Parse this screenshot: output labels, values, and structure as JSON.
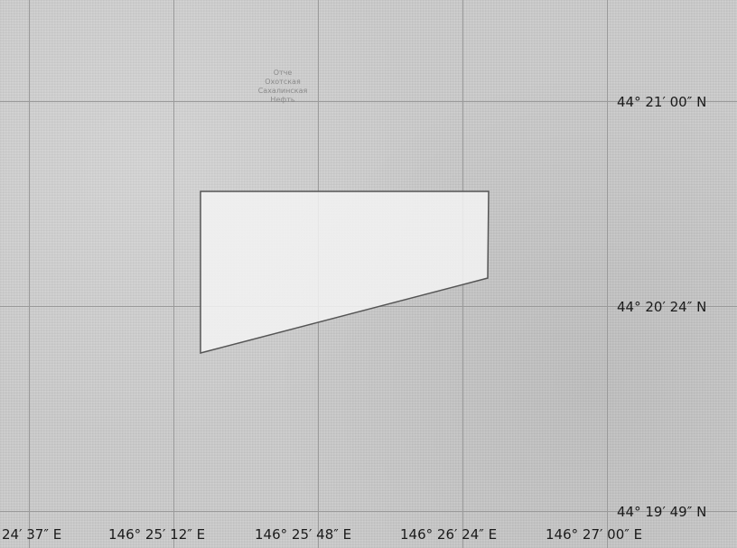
{
  "map": {
    "place_label_lines": [
      "Отче",
      "Охотская",
      "Сахалинская",
      "Нефть"
    ],
    "lat_labels": [
      "44° 21′ 00″ N",
      "44° 20′ 24″ N",
      "44° 19′ 49″ N"
    ],
    "lon_labels": [
      "24′ 37″ E",
      "146° 25′ 12″ E",
      "146° 25′ 48″ E",
      "146° 26′ 24″ E",
      "146° 27′ 00″ E"
    ],
    "region_fill": "#f3f3f3",
    "region_stroke": "#555555",
    "grid_color": "#9a9a9a"
  }
}
